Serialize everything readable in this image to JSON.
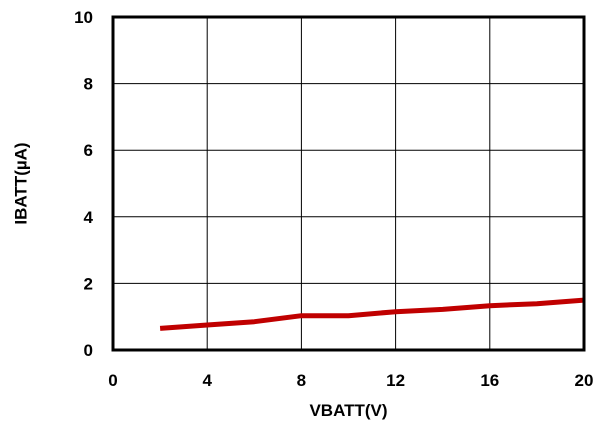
{
  "chart_data": {
    "type": "line",
    "title": "",
    "xlabel": "VBATT(V)",
    "ylabel": "IBATT(µA)",
    "xlim": [
      0,
      20
    ],
    "ylim": [
      0,
      10
    ],
    "x_ticks": [
      "0",
      "4",
      "8",
      "12",
      "16",
      "20"
    ],
    "y_ticks": [
      "0",
      "2",
      "4",
      "6",
      "8",
      "10"
    ],
    "grid": true,
    "legend": "none",
    "series": [
      {
        "color": "#c00000",
        "points": [
          {
            "x": 2,
            "y": 0.65
          },
          {
            "x": 4,
            "y": 0.75
          },
          {
            "x": 6,
            "y": 0.85
          },
          {
            "x": 8,
            "y": 1.03
          },
          {
            "x": 10,
            "y": 1.03
          },
          {
            "x": 12,
            "y": 1.15
          },
          {
            "x": 14,
            "y": 1.22
          },
          {
            "x": 16,
            "y": 1.33
          },
          {
            "x": 18,
            "y": 1.39
          },
          {
            "x": 20,
            "y": 1.5
          }
        ]
      }
    ]
  }
}
